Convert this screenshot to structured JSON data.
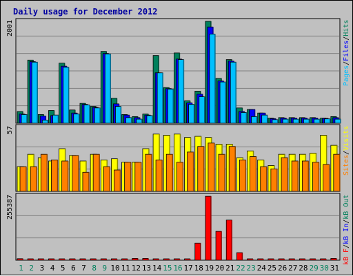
{
  "title": "Daily usage for December 2012",
  "colors": {
    "hits": "#00805c",
    "files": "#0000ff",
    "pages": "#00c0ff",
    "visits": "#ffff00",
    "sites": "#ff8000",
    "kbin": "#0000ff",
    "kbout": "#00805c",
    "kbf": "#ff0000"
  },
  "right_legends": {
    "top": [
      {
        "text": "Pages",
        "key": "pages"
      },
      {
        "text": "/",
        "key": "sep"
      },
      {
        "text": "Files",
        "key": "files"
      },
      {
        "text": "/",
        "key": "sep"
      },
      {
        "text": "Hits",
        "key": "hits"
      }
    ],
    "mid": [
      {
        "text": "Sites",
        "key": "sites"
      },
      {
        "text": "/",
        "key": "sep"
      },
      {
        "text": "Visits",
        "key": "visits"
      }
    ],
    "bot": [
      {
        "text": "kB F",
        "key": "kbf"
      },
      {
        "text": "/",
        "key": "sep"
      },
      {
        "text": "kB In",
        "key": "kbin"
      },
      {
        "text": "/",
        "key": "sep"
      },
      {
        "text": "kB Out",
        "key": "kbout"
      }
    ]
  },
  "chart_data": {
    "type": "bar",
    "title": "Daily usage for December 2012",
    "categories": [
      "1",
      "2",
      "3",
      "4",
      "5",
      "6",
      "7",
      "8",
      "9",
      "10",
      "11",
      "12",
      "13",
      "14",
      "15",
      "16",
      "17",
      "18",
      "19",
      "20",
      "21",
      "22",
      "23",
      "24",
      "25",
      "26",
      "27",
      "28",
      "29",
      "30",
      "31"
    ],
    "weekend_days": [
      "1",
      "2",
      "8",
      "9",
      "15",
      "16",
      "22",
      "23",
      "29",
      "30"
    ],
    "panels": [
      {
        "name": "hits-files-pages",
        "ymax_label": "2001",
        "ylim": [
          0,
          2001
        ],
        "series": [
          {
            "name": "Hits",
            "key": "hits",
            "values": [
              230,
              1240,
              170,
              250,
              1180,
              260,
              390,
              330,
              1410,
              490,
              170,
              130,
              180,
              1330,
              700,
              1380,
              440,
              630,
              2001,
              880,
              1250,
              300,
              270,
              200,
              100,
              110,
              110,
              110,
              110,
              100,
              130
            ]
          },
          {
            "name": "Files",
            "key": "files",
            "values": [
              180,
              1210,
              140,
              150,
              1120,
              200,
              370,
              310,
              1370,
              380,
              160,
              110,
              160,
              990,
              680,
              1260,
              400,
              570,
              1890,
              830,
              1220,
              230,
              270,
              200,
              90,
              100,
              100,
              100,
              100,
              95,
              110
            ]
          },
          {
            "name": "Pages",
            "key": "pages",
            "values": [
              170,
              1200,
              60,
              160,
              1100,
              180,
              360,
              300,
              1360,
              330,
              110,
              80,
              150,
              990,
              670,
              1250,
              370,
              520,
              1750,
              810,
              1200,
              210,
              130,
              160,
              70,
              80,
              80,
              80,
              80,
              85,
              80
            ]
          }
        ]
      },
      {
        "name": "visits-sites",
        "ymax_label": "57",
        "ylim": [
          0,
          57
        ],
        "series": [
          {
            "name": "Visits",
            "key": "visits",
            "values": [
              22,
              33,
              30,
              27,
              38,
              32,
              27,
              33,
              28,
              29,
              26,
              26,
              38,
              51,
              50,
              51,
              48,
              49,
              48,
              42,
              42,
              30,
              36,
              28,
              23,
              33,
              33,
              33,
              34,
              50,
              41
            ]
          },
          {
            "name": "Sites",
            "key": "sites",
            "values": [
              22,
              22,
              33,
              28,
              27,
              32,
              17,
              33,
              22,
              19,
              26,
              26,
              33,
              28,
              33,
              26,
              35,
              40,
              43,
              33,
              40,
              28,
              31,
              22,
              20,
              30,
              27,
              27,
              26,
              24,
              33
            ]
          }
        ]
      },
      {
        "name": "kbf-kbin-kbout",
        "ymax_label": "255387",
        "ylim": [
          0,
          255387
        ],
        "series": [
          {
            "name": "kB F",
            "key": "kbf",
            "values": [
              6000,
              1500,
              1500,
              1500,
              1500,
              5000,
              1500,
              1500,
              1500,
              1500,
              1500,
              7000,
              7000,
              5000,
              2500,
              2500,
              2500,
              68000,
              255000,
              115000,
              160000,
              30000,
              5000,
              2500,
              2500,
              5000,
              2500,
              2500,
              2500,
              5000,
              7000
            ]
          },
          {
            "name": "kB In",
            "key": "kbin",
            "values": [
              0,
              0,
              0,
              0,
              0,
              0,
              0,
              0,
              0,
              0,
              0,
              0,
              0,
              0,
              0,
              0,
              0,
              0,
              0,
              0,
              0,
              0,
              0,
              0,
              0,
              0,
              0,
              0,
              0,
              0,
              0
            ]
          },
          {
            "name": "kB Out",
            "key": "kbout",
            "values": [
              0,
              0,
              0,
              0,
              0,
              0,
              0,
              0,
              0,
              0,
              0,
              0,
              0,
              0,
              0,
              0,
              0,
              0,
              0,
              0,
              0,
              0,
              0,
              0,
              0,
              0,
              0,
              0,
              0,
              0,
              0
            ]
          }
        ]
      }
    ],
    "grid": true
  }
}
